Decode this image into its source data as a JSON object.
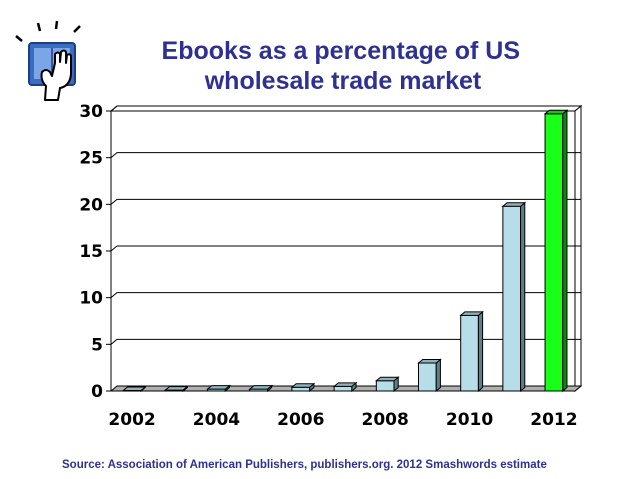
{
  "slide": {
    "icon": "ebook-tablet-hand-icon",
    "source_note": "Source: Association of American Publishers, publishers.org.  2012 Smashwords estimate"
  },
  "chart_data": {
    "type": "bar",
    "title": "Ebooks as a percentage of US wholesale trade market",
    "title_lines": [
      "Ebooks as a percentage of US",
      "wholesale trade market"
    ],
    "categories": [
      "2002",
      "2003",
      "2004",
      "2005",
      "2006",
      "2007",
      "2008",
      "2009",
      "2010",
      "2011",
      "2012"
    ],
    "x_tick_labels": [
      "2002",
      "2004",
      "2006",
      "2008",
      "2010",
      "2012"
    ],
    "values": [
      0.05,
      0.1,
      0.2,
      0.2,
      0.4,
      0.5,
      1.1,
      3.0,
      8.1,
      19.8,
      29.7
    ],
    "ylim": [
      0,
      30
    ],
    "y_ticks": [
      0,
      5,
      10,
      15,
      20,
      25,
      30
    ],
    "grid": true,
    "legend": "none",
    "bar_color": "#b7dde8",
    "highlight_color": "#19ff19",
    "highlight_category": "2012",
    "xlabel": "",
    "ylabel": ""
  }
}
